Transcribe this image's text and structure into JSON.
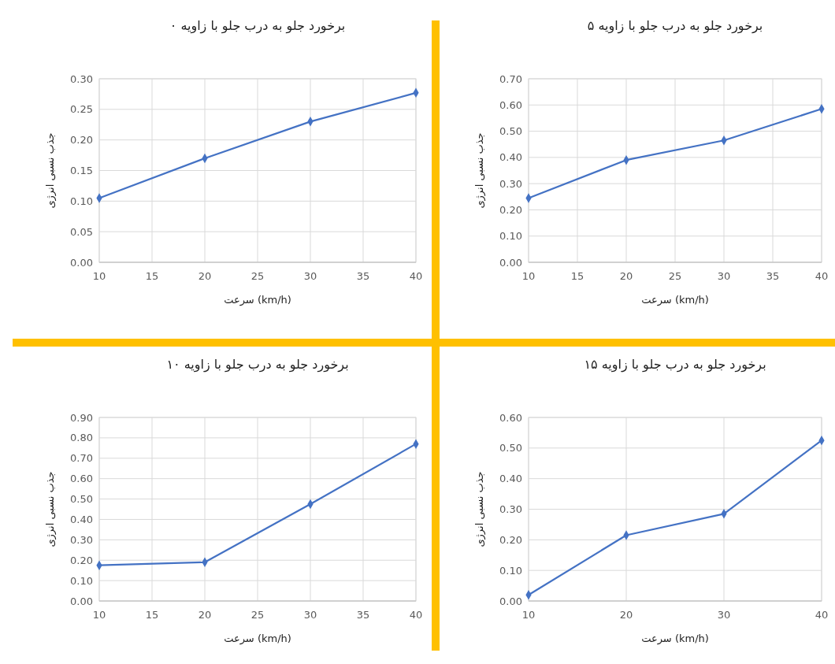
{
  "chart_data": [
    {
      "type": "line",
      "title": "برخورد جلو به درب جلو با زاویه ۰",
      "xlabel": "سرعت (km/h)",
      "ylabel": "جذب نسبی انرژی",
      "x": [
        10,
        20,
        30,
        40
      ],
      "series": [
        {
          "color": "#4472c4",
          "values": [
            0.105,
            0.17,
            0.23,
            0.277
          ]
        }
      ],
      "xlim": [
        10,
        40
      ],
      "xticks": [
        10,
        15,
        20,
        25,
        30,
        35,
        40
      ],
      "ylim": [
        0,
        0.3
      ],
      "yticks": [
        {
          "value": 0,
          "label": "0.00"
        },
        {
          "value": 0.05,
          "label": "0.05"
        },
        {
          "value": 0.1,
          "label": "0.10"
        },
        {
          "value": 0.15,
          "label": "0.15"
        },
        {
          "value": 0.2,
          "label": "0.20"
        },
        {
          "value": 0.25,
          "label": "0.25"
        },
        {
          "value": 0.3,
          "label": "0.30"
        }
      ],
      "grid": true,
      "marker": "diamond",
      "line_style": "solid"
    },
    {
      "type": "line",
      "title": "برخورد جلو به درب جلو با زاویه ۵",
      "xlabel": "سرعت (km/h)",
      "ylabel": "جذب نسبی انرژی",
      "x": [
        10,
        20,
        30,
        40
      ],
      "series": [
        {
          "color": "#4472c4",
          "values": [
            0.245,
            0.39,
            0.465,
            0.585
          ]
        }
      ],
      "xlim": [
        10,
        40
      ],
      "xticks": [
        10,
        15,
        20,
        25,
        30,
        35,
        40
      ],
      "ylim": [
        0,
        0.7
      ],
      "yticks": [
        {
          "value": 0,
          "label": "0.00"
        },
        {
          "value": 0.1,
          "label": "0.10"
        },
        {
          "value": 0.2,
          "label": "0.20"
        },
        {
          "value": 0.3,
          "label": "0.30"
        },
        {
          "value": 0.4,
          "label": "0.40"
        },
        {
          "value": 0.5,
          "label": "0.50"
        },
        {
          "value": 0.6,
          "label": "0.60"
        },
        {
          "value": 0.7,
          "label": "0.70"
        }
      ],
      "grid": true,
      "marker": "diamond",
      "line_style": "solid"
    },
    {
      "type": "line",
      "title": "برخورد جلو به درب جلو با زاویه ۱۰",
      "xlabel": "سرعت (km/h)",
      "ylabel": "جذب نسبی انرژی",
      "x": [
        10,
        20,
        30,
        40
      ],
      "series": [
        {
          "color": "#4472c4",
          "values": [
            0.175,
            0.19,
            0.475,
            0.77
          ]
        }
      ],
      "xlim": [
        10,
        40
      ],
      "xticks": [
        10,
        15,
        20,
        25,
        30,
        35,
        40
      ],
      "ylim": [
        0,
        0.9
      ],
      "yticks": [
        {
          "value": 0,
          "label": "0.00"
        },
        {
          "value": 0.1,
          "label": "0.10"
        },
        {
          "value": 0.2,
          "label": "0.20"
        },
        {
          "value": 0.3,
          "label": "0.30"
        },
        {
          "value": 0.4,
          "label": "0.40"
        },
        {
          "value": 0.5,
          "label": "0.50"
        },
        {
          "value": 0.6,
          "label": "0.60"
        },
        {
          "value": 0.7,
          "label": "0.70"
        },
        {
          "value": 0.8,
          "label": "0.80"
        },
        {
          "value": 0.9,
          "label": "0.90"
        }
      ],
      "grid": true,
      "marker": "diamond",
      "line_style": "solid"
    },
    {
      "type": "line",
      "title": "برخورد جلو به درب جلو با زاویه ۱۵",
      "xlabel": "سرعت (km/h)",
      "ylabel": "جذب نسبی انرژی",
      "x": [
        10,
        20,
        30,
        40
      ],
      "series": [
        {
          "color": "#4472c4",
          "values": [
            0.02,
            0.215,
            0.285,
            0.525
          ]
        }
      ],
      "xlim": [
        10,
        40
      ],
      "xticks": [
        10,
        20,
        30,
        40
      ],
      "ylim": [
        0,
        0.6
      ],
      "yticks": [
        {
          "value": 0,
          "label": "0.00"
        },
        {
          "value": 0.1,
          "label": "0.10"
        },
        {
          "value": 0.2,
          "label": "0.20"
        },
        {
          "value": 0.3,
          "label": "0.30"
        },
        {
          "value": 0.4,
          "label": "0.40"
        },
        {
          "value": 0.5,
          "label": "0.50"
        },
        {
          "value": 0.6,
          "label": "0.60"
        }
      ],
      "grid": true,
      "marker": "diamond",
      "line_style": "solid"
    }
  ]
}
